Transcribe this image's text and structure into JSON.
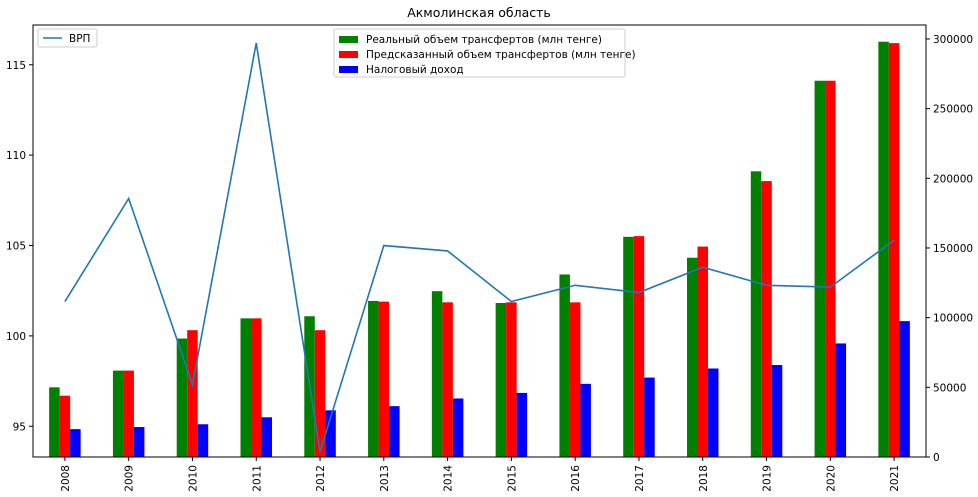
{
  "chart_data": {
    "title": "Акмолинская область",
    "categories": [
      "2008",
      "2009",
      "2010",
      "2011",
      "2012",
      "2013",
      "2014",
      "2015",
      "2016",
      "2017",
      "2018",
      "2019",
      "2020",
      "2021"
    ],
    "bar_series": [
      {
        "name": "Реальный объем трансфертов (млн тенге)",
        "color": "#008000",
        "values": [
          50000,
          62000,
          85000,
          99500,
          101000,
          112000,
          119000,
          110500,
          131000,
          158000,
          143000,
          205000,
          270000,
          298000
        ]
      },
      {
        "name": "Предсказанный объем трансфертов (млн тенге)",
        "color": "#ff0000",
        "values": [
          44000,
          62000,
          91000,
          99500,
          91000,
          111500,
          111000,
          111000,
          111000,
          158500,
          151000,
          198000,
          270000,
          297000
        ]
      },
      {
        "name": "Налоговый доход",
        "color": "#0000ff",
        "values": [
          20000,
          21500,
          23500,
          28500,
          33500,
          36500,
          42000,
          46000,
          52500,
          57000,
          63500,
          66000,
          81500,
          97500
        ]
      }
    ],
    "line_series": [
      {
        "name": "ВРП",
        "color": "#1f77b4",
        "values": [
          101.9,
          107.6,
          97.3,
          116.2,
          93.6,
          105.0,
          104.7,
          101.9,
          102.8,
          102.4,
          103.8,
          102.8,
          102.7,
          105.3
        ]
      }
    ],
    "y_left": {
      "lim": [
        93.3,
        117.2
      ],
      "ticks": [
        95,
        100,
        105,
        110,
        115
      ]
    },
    "y_right": {
      "lim": [
        0,
        310000
      ],
      "ticks": [
        0,
        50000,
        100000,
        150000,
        200000,
        250000,
        300000
      ]
    },
    "legend_bars_position": "upper center",
    "legend_line_position": "upper left",
    "grid": false
  }
}
